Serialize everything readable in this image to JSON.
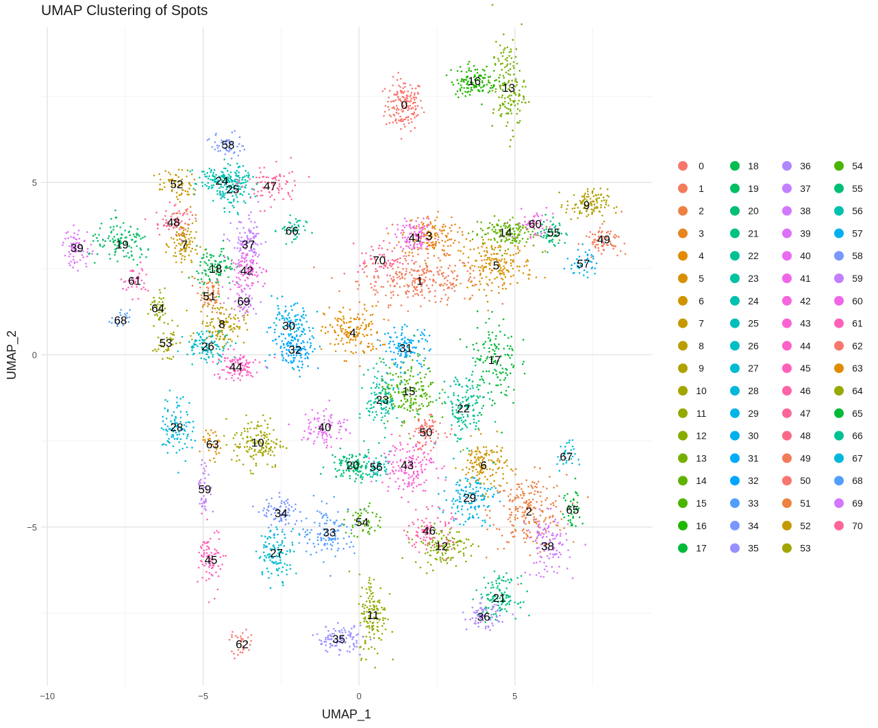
{
  "chart_data": {
    "type": "scatter",
    "title": "UMAP Clustering of Spots",
    "xlabel": "UMAP_1",
    "ylabel": "UMAP_2",
    "xlim": [
      -10.2,
      9.4
    ],
    "ylim": [
      -9.6,
      9.5
    ],
    "x_ticks": [
      -10,
      -5,
      0,
      5
    ],
    "x_tick_labels": [
      "−10",
      "−5",
      "0",
      "5"
    ],
    "y_ticks": [
      -5,
      0,
      5
    ],
    "y_tick_labels": [
      "−5",
      "0",
      "5"
    ],
    "grid": true,
    "legend_position": "right",
    "legend_title": "",
    "n_clusters": 71,
    "cluster_labels": [
      "0",
      "1",
      "2",
      "3",
      "4",
      "5",
      "6",
      "7",
      "8",
      "9",
      "10",
      "11",
      "12",
      "13",
      "14",
      "15",
      "16",
      "17",
      "18",
      "19",
      "20",
      "21",
      "22",
      "23",
      "24",
      "25",
      "26",
      "27",
      "28",
      "29",
      "30",
      "31",
      "32",
      "33",
      "34",
      "35",
      "36",
      "37",
      "38",
      "39",
      "40",
      "41",
      "42",
      "43",
      "44",
      "45",
      "46",
      "47",
      "48",
      "49",
      "50",
      "51",
      "52",
      "53",
      "54",
      "55",
      "56",
      "57",
      "58",
      "59",
      "60",
      "61",
      "62",
      "63",
      "64",
      "65",
      "66",
      "67",
      "68",
      "69",
      "70"
    ],
    "cluster_centers": [
      [
        1.45,
        7.25
      ],
      [
        1.95,
        2.15
      ],
      [
        5.45,
        -4.55
      ],
      [
        2.25,
        3.45
      ],
      [
        -0.2,
        0.65
      ],
      [
        4.4,
        2.6
      ],
      [
        4.0,
        -3.2
      ],
      [
        -5.6,
        3.2
      ],
      [
        -4.4,
        0.9
      ],
      [
        7.3,
        4.35
      ],
      [
        -3.25,
        -2.55
      ],
      [
        0.45,
        -7.55
      ],
      [
        2.65,
        -5.55
      ],
      [
        4.8,
        7.75
      ],
      [
        4.7,
        3.55
      ],
      [
        1.6,
        -1.05
      ],
      [
        3.7,
        7.95
      ],
      [
        4.35,
        -0.15
      ],
      [
        -4.6,
        2.5
      ],
      [
        -7.6,
        3.2
      ],
      [
        -0.2,
        -3.2
      ],
      [
        4.5,
        -7.05
      ],
      [
        3.35,
        -1.55
      ],
      [
        0.75,
        -1.3
      ],
      [
        -4.4,
        5.05
      ],
      [
        -4.05,
        4.8
      ],
      [
        -4.85,
        0.25
      ],
      [
        -2.65,
        -5.75
      ],
      [
        -5.85,
        -2.1
      ],
      [
        3.55,
        -4.15
      ],
      [
        -2.25,
        0.85
      ],
      [
        1.5,
        0.2
      ],
      [
        -2.05,
        0.15
      ],
      [
        -0.95,
        -5.15
      ],
      [
        -2.5,
        -4.6
      ],
      [
        -0.65,
        -8.25
      ],
      [
        4.0,
        -7.6
      ],
      [
        -3.55,
        3.2
      ],
      [
        6.05,
        -5.55
      ],
      [
        -9.05,
        3.1
      ],
      [
        -1.1,
        -2.1
      ],
      [
        1.8,
        3.4
      ],
      [
        -3.6,
        2.45
      ],
      [
        1.55,
        -3.2
      ],
      [
        -3.95,
        -0.35
      ],
      [
        -4.75,
        -5.95
      ],
      [
        2.25,
        -5.1
      ],
      [
        -2.85,
        4.9
      ],
      [
        -5.95,
        3.85
      ],
      [
        7.85,
        3.35
      ],
      [
        2.15,
        -2.25
      ],
      [
        -4.8,
        1.7
      ],
      [
        -5.85,
        4.95
      ],
      [
        -6.2,
        0.35
      ],
      [
        0.1,
        -4.85
      ],
      [
        6.25,
        3.55
      ],
      [
        0.55,
        -3.25
      ],
      [
        7.2,
        2.65
      ],
      [
        -4.2,
        6.1
      ],
      [
        -4.95,
        -3.9
      ],
      [
        5.65,
        3.8
      ],
      [
        -7.2,
        2.15
      ],
      [
        -3.75,
        -8.4
      ],
      [
        -4.7,
        -2.6
      ],
      [
        -6.45,
        1.35
      ],
      [
        6.85,
        -4.5
      ],
      [
        -2.15,
        3.6
      ],
      [
        6.65,
        -2.95
      ],
      [
        -7.65,
        1.0
      ],
      [
        -3.7,
        1.55
      ],
      [
        0.65,
        2.75
      ]
    ],
    "cluster_label_positions": [
      [
        1.45,
        7.25
      ],
      [
        1.95,
        2.15
      ],
      [
        5.45,
        -4.55
      ],
      [
        2.25,
        3.45
      ],
      [
        -0.2,
        0.65
      ],
      [
        4.4,
        2.6
      ],
      [
        4.0,
        -3.2
      ],
      [
        -5.6,
        3.2
      ],
      [
        -4.4,
        0.9
      ],
      [
        7.3,
        4.35
      ],
      [
        -3.25,
        -2.55
      ],
      [
        0.45,
        -7.55
      ],
      [
        2.65,
        -5.55
      ],
      [
        4.8,
        7.75
      ],
      [
        4.7,
        3.55
      ],
      [
        1.6,
        -1.05
      ],
      [
        3.7,
        7.95
      ],
      [
        4.35,
        -0.15
      ],
      [
        -4.6,
        2.5
      ],
      [
        -7.6,
        3.2
      ],
      [
        -0.2,
        -3.2
      ],
      [
        4.5,
        -7.05
      ],
      [
        3.35,
        -1.55
      ],
      [
        0.75,
        -1.3
      ],
      [
        -4.4,
        5.05
      ],
      [
        -4.05,
        4.8
      ],
      [
        -4.85,
        0.25
      ],
      [
        -2.65,
        -5.75
      ],
      [
        -5.85,
        -2.1
      ],
      [
        3.55,
        -4.15
      ],
      [
        -2.25,
        0.85
      ],
      [
        1.5,
        0.2
      ],
      [
        -2.05,
        0.15
      ],
      [
        -0.95,
        -5.15
      ],
      [
        -2.5,
        -4.6
      ],
      [
        -0.65,
        -8.25
      ],
      [
        4.0,
        -7.6
      ],
      [
        -3.55,
        3.2
      ],
      [
        6.05,
        -5.55
      ],
      [
        -9.05,
        3.1
      ],
      [
        -1.1,
        -2.1
      ],
      [
        1.8,
        3.4
      ],
      [
        -3.6,
        2.45
      ],
      [
        1.55,
        -3.2
      ],
      [
        -3.95,
        -0.35
      ],
      [
        -4.75,
        -5.95
      ],
      [
        2.25,
        -5.1
      ],
      [
        -2.85,
        4.9
      ],
      [
        -5.95,
        3.85
      ],
      [
        7.85,
        3.35
      ],
      [
        2.15,
        -2.25
      ],
      [
        -4.8,
        1.7
      ],
      [
        -5.85,
        4.95
      ],
      [
        -6.2,
        0.35
      ],
      [
        0.1,
        -4.85
      ],
      [
        6.25,
        3.55
      ],
      [
        0.55,
        -3.25
      ],
      [
        7.2,
        2.65
      ],
      [
        -4.2,
        6.1
      ],
      [
        -4.95,
        -3.9
      ],
      [
        5.65,
        3.8
      ],
      [
        -7.2,
        2.15
      ],
      [
        -3.75,
        -8.4
      ],
      [
        -4.7,
        -2.6
      ],
      [
        -6.45,
        1.35
      ],
      [
        6.85,
        -4.5
      ],
      [
        -2.15,
        3.6
      ],
      [
        6.65,
        -2.95
      ],
      [
        -7.65,
        1.0
      ],
      [
        -3.7,
        1.55
      ],
      [
        0.65,
        2.75
      ]
    ],
    "cluster_spread": [
      [
        0.4,
        0.5
      ],
      [
        1.3,
        0.45
      ],
      [
        0.8,
        0.7
      ],
      [
        0.6,
        0.4
      ],
      [
        0.6,
        0.5
      ],
      [
        0.8,
        0.45
      ],
      [
        0.5,
        0.5
      ],
      [
        0.3,
        0.5
      ],
      [
        0.5,
        0.4
      ],
      [
        0.45,
        0.3
      ],
      [
        0.55,
        0.5
      ],
      [
        0.3,
        0.8
      ],
      [
        0.6,
        0.35
      ],
      [
        0.35,
        0.9
      ],
      [
        0.7,
        0.3
      ],
      [
        0.6,
        0.6
      ],
      [
        0.5,
        0.3
      ],
      [
        0.5,
        0.9
      ],
      [
        0.4,
        0.4
      ],
      [
        0.7,
        0.4
      ],
      [
        0.5,
        0.3
      ],
      [
        0.4,
        0.4
      ],
      [
        0.5,
        0.7
      ],
      [
        0.35,
        0.6
      ],
      [
        0.6,
        0.3
      ],
      [
        0.4,
        0.4
      ],
      [
        0.5,
        0.3
      ],
      [
        0.4,
        0.5
      ],
      [
        0.35,
        0.6
      ],
      [
        0.55,
        0.5
      ],
      [
        0.5,
        0.4
      ],
      [
        0.5,
        0.4
      ],
      [
        0.5,
        0.4
      ],
      [
        0.6,
        0.5
      ],
      [
        0.4,
        0.3
      ],
      [
        0.5,
        0.25
      ],
      [
        0.35,
        0.25
      ],
      [
        0.35,
        0.5
      ],
      [
        0.45,
        0.6
      ],
      [
        0.3,
        0.4
      ],
      [
        0.5,
        0.4
      ],
      [
        0.4,
        0.3
      ],
      [
        0.4,
        0.4
      ],
      [
        0.6,
        0.5
      ],
      [
        0.5,
        0.3
      ],
      [
        0.25,
        0.6
      ],
      [
        0.5,
        0.4
      ],
      [
        0.6,
        0.4
      ],
      [
        0.4,
        0.3
      ],
      [
        0.4,
        0.25
      ],
      [
        0.4,
        0.35
      ],
      [
        0.3,
        0.3
      ],
      [
        0.4,
        0.3
      ],
      [
        0.25,
        0.3
      ],
      [
        0.35,
        0.35
      ],
      [
        0.3,
        0.3
      ],
      [
        0.3,
        0.25
      ],
      [
        0.3,
        0.3
      ],
      [
        0.35,
        0.25
      ],
      [
        0.15,
        0.5
      ],
      [
        0.4,
        0.3
      ],
      [
        0.3,
        0.3
      ],
      [
        0.25,
        0.3
      ],
      [
        0.25,
        0.3
      ],
      [
        0.2,
        0.35
      ],
      [
        0.2,
        0.5
      ],
      [
        0.3,
        0.3
      ],
      [
        0.2,
        0.3
      ],
      [
        0.2,
        0.2
      ],
      [
        0.35,
        0.35
      ],
      [
        0.45,
        0.35
      ]
    ],
    "points_per_cluster": [
      160,
      260,
      220,
      150,
      150,
      180,
      140,
      100,
      120,
      110,
      140,
      140,
      120,
      150,
      140,
      170,
      120,
      130,
      100,
      110,
      110,
      120,
      140,
      120,
      120,
      100,
      100,
      110,
      100,
      130,
      110,
      120,
      110,
      120,
      80,
      100,
      70,
      100,
      110,
      70,
      90,
      90,
      90,
      150,
      100,
      80,
      90,
      80,
      70,
      70,
      80,
      60,
      60,
      40,
      50,
      50,
      50,
      40,
      50,
      40,
      50,
      40,
      30,
      30,
      40,
      40,
      40,
      30,
      20,
      50,
      60
    ],
    "colors": [
      "#F8766D",
      "#F37B59",
      "#ED8141",
      "#E7861B",
      "#E08B00",
      "#D89000",
      "#CF9400",
      "#C59900",
      "#BB9D00",
      "#B0A100",
      "#A3A500",
      "#95A900",
      "#86AC00",
      "#75AF00",
      "#61B200",
      "#49B500",
      "#1FB700",
      "#00BA38",
      "#00BC51",
      "#00BE64",
      "#00BF74",
      "#00C084",
      "#00C193",
      "#00C1A0",
      "#00C0AE",
      "#00BFBA",
      "#00BDC6",
      "#00BBD1",
      "#00B8DC",
      "#00B4E6",
      "#00B0EF",
      "#00ABF7",
      "#00A5FF",
      "#529EFF",
      "#7997FF",
      "#978FFF",
      "#AF87FF",
      "#C37FFF",
      "#D277FF",
      "#DE70F9",
      "#E86BF2",
      "#F066E9",
      "#F664DF",
      "#FA62D3",
      "#FD61C6",
      "#FF61B9",
      "#FF63AA",
      "#FD6699",
      "#FA6A87",
      "#F37B59",
      "#F8766D",
      "#ED8141",
      "#C59900",
      "#A3A500",
      "#49B500",
      "#00BF74",
      "#00C0AE",
      "#00B0EF",
      "#7997FF",
      "#C37FFF",
      "#F066E9",
      "#FF61B9",
      "#F8766D",
      "#E08B00",
      "#95A900",
      "#00BA38",
      "#00C193",
      "#00B8DC",
      "#529EFF",
      "#D277FF",
      "#FD6699"
    ]
  }
}
